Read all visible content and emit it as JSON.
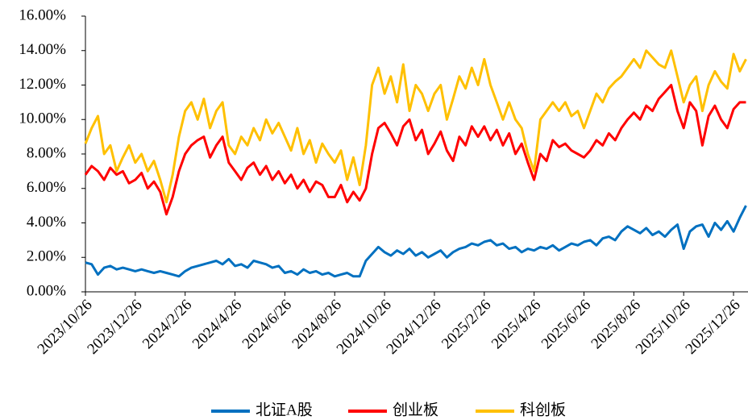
{
  "chart_data": {
    "type": "line",
    "categories": [
      "2023/10/26",
      null,
      null,
      null,
      null,
      null,
      null,
      null,
      "2023/12/26",
      null,
      null,
      null,
      null,
      null,
      null,
      null,
      "2024/2/26",
      null,
      null,
      null,
      null,
      null,
      null,
      null,
      "2024/4/26",
      null,
      null,
      null,
      null,
      null,
      null,
      null,
      "2024/6/26",
      null,
      null,
      null,
      null,
      null,
      null,
      null,
      "2024/8/26",
      null,
      null,
      null,
      null,
      null,
      null,
      null,
      "2024/10/26",
      null,
      null,
      null,
      null,
      null,
      null,
      null,
      "2024/12/26",
      null,
      null,
      null,
      null,
      null,
      null,
      null,
      "2025/2/26",
      null,
      null,
      null,
      null,
      null,
      null,
      null,
      "2025/4/26",
      null,
      null,
      null,
      null,
      null,
      null,
      null,
      "2025/6/26",
      null,
      null,
      null,
      null,
      null,
      null,
      null,
      "2025/8/26",
      null,
      null,
      null,
      null,
      null,
      null,
      null,
      "2025/10/26",
      null,
      null,
      null,
      null,
      null,
      null,
      null,
      "2025/12/26",
      null,
      null
    ],
    "series": [
      {
        "name": "北证A股",
        "color": "#0070c0",
        "values": [
          1.7,
          1.6,
          1.0,
          1.4,
          1.5,
          1.3,
          1.4,
          1.3,
          1.2,
          1.3,
          1.2,
          1.1,
          1.2,
          1.1,
          1.0,
          0.9,
          1.2,
          1.4,
          1.5,
          1.6,
          1.7,
          1.8,
          1.6,
          1.9,
          1.5,
          1.6,
          1.4,
          1.8,
          1.7,
          1.6,
          1.4,
          1.5,
          1.1,
          1.2,
          1.0,
          1.3,
          1.1,
          1.2,
          1.0,
          1.1,
          0.9,
          1.0,
          1.1,
          0.9,
          0.9,
          1.8,
          2.2,
          2.6,
          2.3,
          2.1,
          2.4,
          2.2,
          2.5,
          2.1,
          2.3,
          2.0,
          2.2,
          2.4,
          2.0,
          2.3,
          2.5,
          2.6,
          2.8,
          2.7,
          2.9,
          3.0,
          2.7,
          2.8,
          2.5,
          2.6,
          2.3,
          2.5,
          2.4,
          2.6,
          2.5,
          2.7,
          2.4,
          2.6,
          2.8,
          2.7,
          2.9,
          3.0,
          2.7,
          3.1,
          3.2,
          3.0,
          3.5,
          3.8,
          3.6,
          3.4,
          3.7,
          3.3,
          3.5,
          3.2,
          3.6,
          3.9,
          2.5,
          3.5,
          3.8,
          3.9,
          3.2,
          4.0,
          3.6,
          4.1,
          3.5,
          4.3,
          5.0
        ]
      },
      {
        "name": "创业板",
        "color": "#ff0000",
        "values": [
          6.8,
          7.3,
          7.0,
          6.5,
          7.2,
          6.8,
          7.0,
          6.3,
          6.5,
          6.9,
          6.0,
          6.4,
          5.8,
          4.5,
          5.5,
          7.0,
          8.0,
          8.5,
          8.8,
          9.0,
          7.8,
          8.5,
          9.0,
          7.5,
          7.0,
          6.5,
          7.2,
          7.5,
          6.8,
          7.3,
          6.5,
          7.0,
          6.3,
          6.8,
          6.0,
          6.5,
          5.8,
          6.4,
          6.2,
          5.5,
          5.5,
          6.2,
          5.2,
          5.8,
          5.3,
          6.0,
          8.0,
          9.5,
          9.8,
          9.2,
          8.5,
          9.6,
          10.0,
          8.8,
          9.4,
          8.0,
          8.6,
          9.3,
          8.2,
          7.6,
          9.0,
          8.5,
          9.6,
          9.0,
          9.6,
          8.8,
          9.4,
          8.5,
          9.2,
          8.0,
          8.6,
          7.5,
          6.5,
          8.0,
          7.6,
          8.8,
          8.4,
          8.6,
          8.2,
          8.0,
          7.8,
          8.2,
          8.8,
          8.5,
          9.2,
          8.8,
          9.5,
          10.0,
          10.4,
          10.0,
          10.8,
          10.5,
          11.2,
          11.6,
          12.0,
          10.5,
          9.5,
          11.0,
          10.5,
          8.5,
          10.2,
          10.8,
          10.0,
          9.5,
          10.6,
          11.0,
          11.0
        ]
      },
      {
        "name": "科创板",
        "color": "#ffc000",
        "values": [
          8.6,
          9.5,
          10.2,
          8.0,
          8.5,
          7.0,
          7.8,
          8.5,
          7.5,
          8.0,
          7.0,
          7.6,
          6.5,
          5.2,
          6.8,
          9.0,
          10.5,
          11.0,
          10.0,
          11.2,
          9.5,
          10.5,
          11.0,
          8.5,
          8.0,
          9.0,
          8.5,
          9.5,
          8.8,
          10.0,
          9.2,
          9.8,
          9.0,
          8.2,
          9.5,
          8.0,
          8.8,
          7.5,
          8.6,
          8.0,
          7.5,
          8.2,
          6.5,
          7.8,
          6.2,
          8.5,
          12.0,
          13.0,
          11.5,
          12.5,
          11.0,
          13.2,
          10.5,
          12.0,
          11.5,
          10.5,
          11.5,
          12.0,
          10.0,
          11.2,
          12.5,
          11.8,
          13.0,
          12.0,
          13.5,
          12.0,
          11.0,
          10.0,
          11.0,
          10.0,
          9.5,
          8.0,
          7.0,
          10.0,
          10.5,
          11.0,
          10.5,
          11.0,
          10.2,
          10.5,
          9.5,
          10.5,
          11.5,
          11.0,
          11.8,
          12.2,
          12.5,
          13.0,
          13.5,
          13.0,
          14.0,
          13.6,
          13.2,
          13.0,
          14.0,
          12.5,
          11.0,
          12.0,
          12.5,
          10.5,
          12.0,
          12.8,
          12.2,
          11.8,
          13.8,
          12.8,
          13.5
        ]
      }
    ],
    "ylim": [
      0,
      16
    ],
    "yticks": [
      {
        "value": 0,
        "label": "0.00%"
      },
      {
        "value": 2,
        "label": "2.00%"
      },
      {
        "value": 4,
        "label": "4.00%"
      },
      {
        "value": 6,
        "label": "6.00%"
      },
      {
        "value": 8,
        "label": "8.00%"
      },
      {
        "value": 10,
        "label": "10.00%"
      },
      {
        "value": 12,
        "label": "12.00%"
      },
      {
        "value": 14,
        "label": "14.00%"
      },
      {
        "value": 16,
        "label": "16.00%"
      }
    ],
    "grid": false,
    "legend": "bottom"
  }
}
